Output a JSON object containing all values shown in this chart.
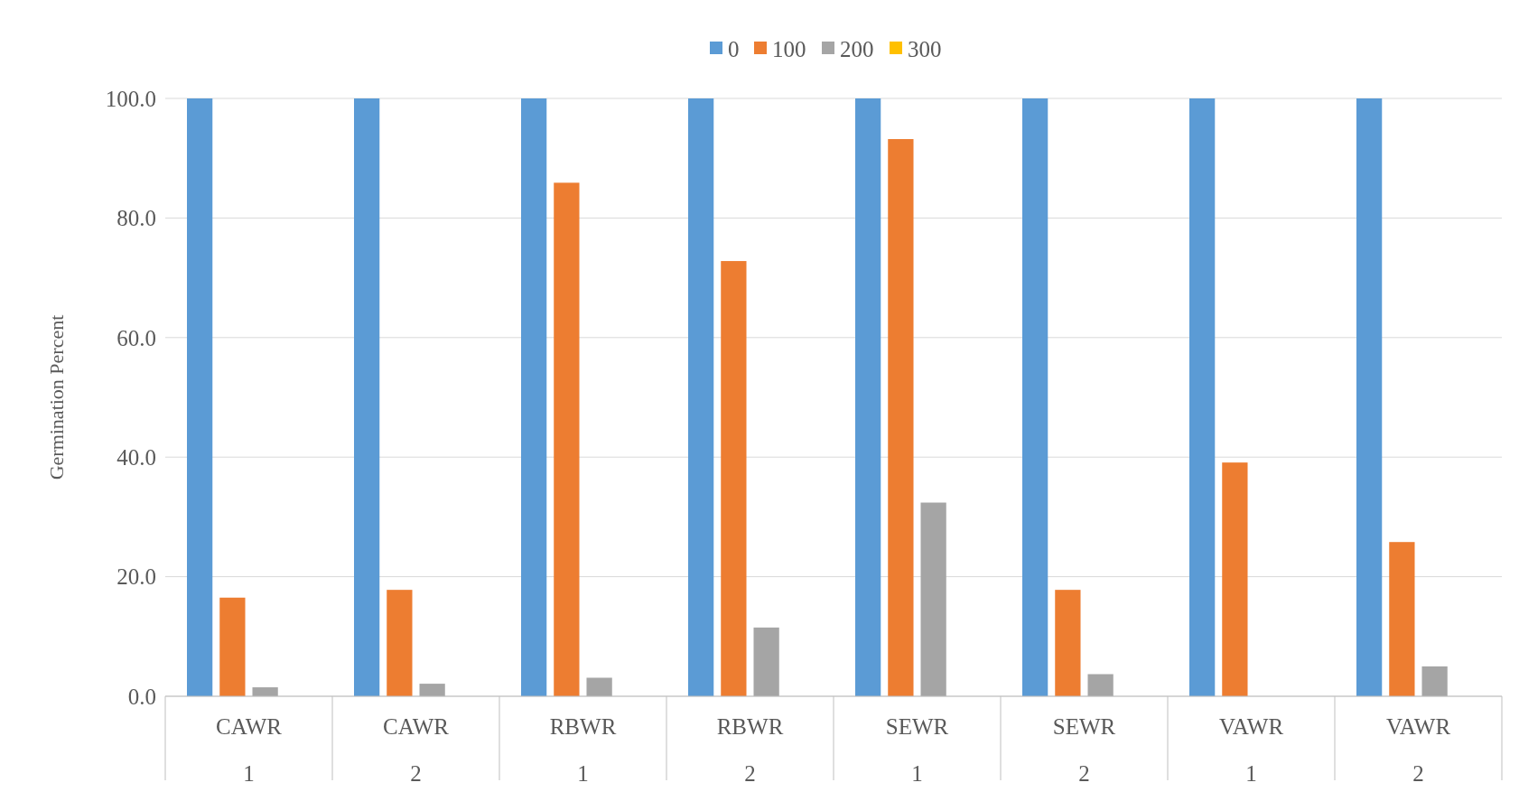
{
  "chart_data": {
    "type": "bar",
    "ylabel": "Germination Percent",
    "categories": [
      "CAWR\n1",
      "CAWR\n2",
      "RBWR\n1",
      "RBWR\n2",
      "SEWR\n1",
      "SEWR\n2",
      "VAWR\n1",
      "VAWR\n2"
    ],
    "series": [
      {
        "name": "0",
        "color": "#5b9bd5",
        "values": [
          100,
          100,
          100,
          100,
          100,
          100,
          100,
          100
        ]
      },
      {
        "name": "100",
        "color": "#ed7d31",
        "values": [
          16.5,
          17.8,
          85.9,
          72.8,
          93.2,
          17.8,
          39.1,
          25.8
        ]
      },
      {
        "name": "200",
        "color": "#a5a5a5",
        "values": [
          1.5,
          2.1,
          3.1,
          11.5,
          32.4,
          3.7,
          0,
          5.0
        ]
      },
      {
        "name": "300",
        "color": "#ffc000",
        "values": [
          0,
          0,
          0,
          0,
          0,
          0,
          0,
          0
        ]
      }
    ],
    "ylim": [
      0,
      100
    ],
    "yticks": [
      {
        "value": 0,
        "label": "0.0"
      },
      {
        "value": 20,
        "label": "20.0"
      },
      {
        "value": 40,
        "label": "40.0"
      },
      {
        "value": 60,
        "label": "60.0"
      },
      {
        "value": 80,
        "label": "80.0"
      },
      {
        "value": 100,
        "label": "100.0"
      }
    ],
    "grid": "y",
    "legend": "top"
  }
}
